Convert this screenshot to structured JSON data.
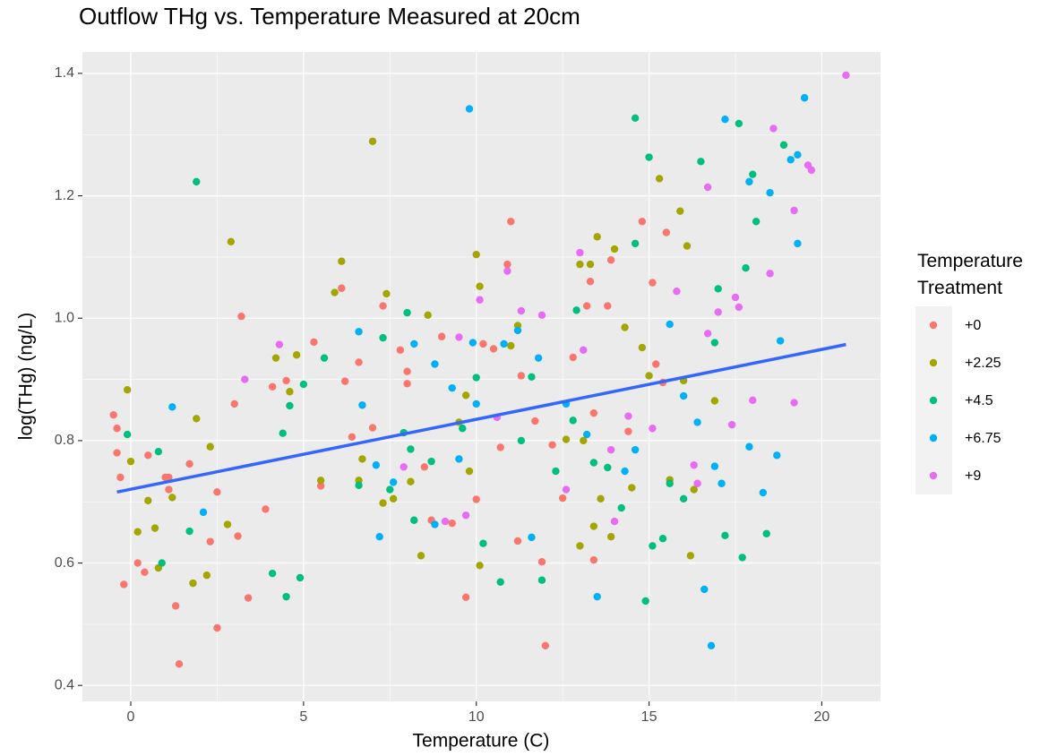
{
  "chart_data": {
    "type": "scatter",
    "title": "Outflow THg vs. Temperature Measured at 20cm",
    "x_label": "Temperature (C)",
    "y_label": "log(THg) (ng/L)",
    "legend_title": "Temperature Treatment",
    "legend_position": "right",
    "grid": true,
    "xlim": [
      -1.4,
      21.7
    ],
    "ylim": [
      0.374,
      1.435
    ],
    "xticks": [
      0,
      5,
      10,
      15,
      20
    ],
    "yticks": [
      0.4,
      0.6,
      0.8,
      {
        "value": 1.0,
        "label": "1.0"
      },
      1.2,
      1.4
    ],
    "x_minor_ticks": [
      2.5,
      7.5,
      12.5,
      17.5
    ],
    "y_minor_ticks": [
      0.5,
      0.7,
      0.9,
      1.1,
      1.3
    ],
    "trend_line": {
      "color": "#3366ff",
      "x": [
        -0.4,
        20.7
      ],
      "values": [
        0.716,
        0.957
      ]
    },
    "series": [
      {
        "name": "+0",
        "color": "#F8766D",
        "x": [
          -0.5,
          -0.4,
          -0.4,
          -0.3,
          -0.2,
          0.2,
          0.4,
          0.5,
          1.0,
          1.1,
          1.1,
          1.3,
          1.4,
          1.7,
          2.3,
          2.5,
          2.5,
          3.0,
          3.1,
          3.2,
          3.4,
          3.9,
          4.1,
          4.5,
          5.3,
          5.5,
          6.1,
          6.2,
          6.4,
          6.6,
          7.0,
          7.3,
          7.8,
          8.0,
          8.0,
          8.5,
          8.7,
          9.0,
          9.3,
          9.7,
          10.0,
          10.2,
          10.5,
          10.7,
          10.9,
          11.0,
          11.2,
          11.3,
          11.7,
          11.9,
          12.0,
          12.2,
          12.5,
          12.8,
          13.2,
          13.3,
          13.4,
          13.4,
          13.8,
          13.9,
          14.4,
          14.8,
          15.1,
          15.2,
          15.5,
          15.4
        ],
        "values": [
          0.842,
          0.82,
          0.78,
          0.74,
          0.565,
          0.6,
          0.585,
          0.776,
          0.74,
          0.74,
          0.72,
          0.53,
          0.435,
          0.762,
          0.635,
          0.716,
          0.494,
          0.86,
          0.644,
          1.003,
          0.543,
          0.688,
          0.888,
          0.898,
          0.961,
          0.726,
          1.049,
          0.897,
          0.806,
          0.928,
          0.821,
          1.02,
          0.948,
          0.913,
          0.893,
          0.757,
          0.67,
          0.97,
          0.665,
          0.544,
          0.704,
          0.958,
          0.95,
          0.789,
          1.088,
          1.158,
          0.636,
          0.906,
          0.832,
          0.602,
          0.465,
          0.793,
          0.706,
          0.936,
          1.02,
          1.06,
          0.605,
          0.845,
          1.02,
          1.095,
          0.815,
          1.158,
          1.058,
          0.925,
          1.14,
          0.895
        ]
      },
      {
        "name": "+2.25",
        "color": "#A3A500",
        "x": [
          -0.1,
          0,
          0.2,
          0.5,
          0.7,
          0.8,
          1.2,
          1.8,
          1.9,
          2.2,
          2.3,
          2.8,
          2.9,
          4.2,
          4.6,
          4.8,
          5.5,
          5.9,
          6.1,
          6.6,
          6.7,
          7.0,
          7.3,
          7.4,
          7.6,
          8.1,
          8.4,
          8.6,
          9.5,
          9.7,
          9.8,
          10.0,
          10.1,
          10.1,
          11.0,
          11.2,
          12.6,
          13.0,
          13.0,
          13.1,
          13.3,
          13.4,
          13.5,
          13.6,
          13.9,
          14.0,
          14.3,
          14.5,
          14.8,
          15.0,
          15.3,
          15.6,
          15.9,
          16.0,
          16.1,
          16.2,
          16.3,
          16.9
        ],
        "values": [
          0.883,
          0.766,
          0.651,
          0.702,
          0.657,
          0.592,
          0.707,
          0.567,
          0.836,
          0.58,
          0.79,
          0.663,
          1.125,
          0.935,
          0.88,
          0.94,
          0.735,
          1.042,
          1.093,
          0.735,
          0.77,
          1.289,
          0.698,
          1.04,
          0.705,
          0.733,
          0.612,
          1.005,
          0.83,
          0.874,
          0.75,
          1.104,
          0.596,
          1.052,
          0.955,
          0.988,
          0.802,
          1.088,
          0.628,
          0.8,
          1.088,
          0.66,
          1.133,
          0.705,
          0.643,
          1.113,
          0.985,
          0.723,
          0.952,
          0.906,
          1.228,
          0.736,
          1.175,
          0.898,
          1.118,
          0.612,
          0.72,
          0.865
        ]
      },
      {
        "name": "+4.5",
        "color": "#00BF7D",
        "x": [
          -0.1,
          0.8,
          0.9,
          1.7,
          1.9,
          4.1,
          4.4,
          4.5,
          4.6,
          4.9,
          5.0,
          5.6,
          6.6,
          7.3,
          7.5,
          7.9,
          8.0,
          8.1,
          8.2,
          8.7,
          9.6,
          10.0,
          10.2,
          10.7,
          11.3,
          11.6,
          11.9,
          12.3,
          12.8,
          12.9,
          13.4,
          13.8,
          14.2,
          14.6,
          14.6,
          14.9,
          15.0,
          15.1,
          15.4,
          15.6,
          16.0,
          16.5,
          16.9,
          17.0,
          17.2,
          17.6,
          17.7,
          17.8,
          18.0,
          18.1,
          18.4,
          18.9
        ],
        "values": [
          0.81,
          0.782,
          0.6,
          0.652,
          1.223,
          0.583,
          0.812,
          0.545,
          0.857,
          0.576,
          0.892,
          0.935,
          0.727,
          0.968,
          0.72,
          0.813,
          1.009,
          0.786,
          0.67,
          0.766,
          0.82,
          0.903,
          0.632,
          0.569,
          0.8,
          0.904,
          0.572,
          0.75,
          0.833,
          1.013,
          0.764,
          0.756,
          0.69,
          1.327,
          1.122,
          0.538,
          1.263,
          0.628,
          0.64,
          0.73,
          0.705,
          1.256,
          0.96,
          1.048,
          0.645,
          1.318,
          0.609,
          1.082,
          1.235,
          1.158,
          0.648,
          1.283
        ]
      },
      {
        "name": "+6.75",
        "color": "#00B0F6",
        "x": [
          1.2,
          2.1,
          6.6,
          6.7,
          7.1,
          7.2,
          7.6,
          8.2,
          8.8,
          8.8,
          9.3,
          9.5,
          9.8,
          9.9,
          10.0,
          10.8,
          11.2,
          11.6,
          11.8,
          12.6,
          13.2,
          13.5,
          14.3,
          14.6,
          15.6,
          16.0,
          16.4,
          16.6,
          16.8,
          16.9,
          17.1,
          17.2,
          17.9,
          17.9,
          18.3,
          18.5,
          18.7,
          18.8,
          19.1,
          19.3,
          19.3,
          19.5
        ],
        "values": [
          0.855,
          0.683,
          0.978,
          0.858,
          0.76,
          0.643,
          0.732,
          0.958,
          0.663,
          0.925,
          0.886,
          0.77,
          1.342,
          0.96,
          0.86,
          0.958,
          0.98,
          0.642,
          0.935,
          0.86,
          0.81,
          0.545,
          0.75,
          0.785,
          0.99,
          0.873,
          0.83,
          0.557,
          0.465,
          0.758,
          0.73,
          1.325,
          1.223,
          0.79,
          0.715,
          1.205,
          0.776,
          0.963,
          1.259,
          1.267,
          1.122,
          1.36
        ]
      },
      {
        "name": "+9",
        "color": "#E76BF3",
        "x": [
          3.3,
          4.3,
          7.9,
          9.1,
          9.5,
          9.7,
          10.1,
          10.6,
          10.9,
          11.3,
          11.9,
          12.6,
          13.0,
          13.1,
          13.9,
          14.0,
          14.4,
          15.1,
          15.8,
          16.3,
          16.4,
          16.7,
          16.7,
          17.0,
          17.4,
          17.5,
          17.6,
          18.0,
          18.5,
          18.6,
          19.2,
          19.2,
          19.6,
          19.7,
          20.7
        ],
        "values": [
          0.9,
          0.957,
          0.757,
          0.668,
          0.969,
          0.678,
          1.03,
          0.838,
          1.077,
          1.012,
          1.005,
          0.72,
          1.107,
          0.948,
          0.785,
          0.668,
          0.84,
          0.82,
          1.044,
          0.76,
          0.73,
          1.214,
          0.975,
          1.01,
          0.826,
          1.034,
          1.018,
          0.866,
          1.073,
          1.31,
          0.862,
          1.176,
          1.25,
          1.242,
          1.397
        ]
      }
    ]
  }
}
